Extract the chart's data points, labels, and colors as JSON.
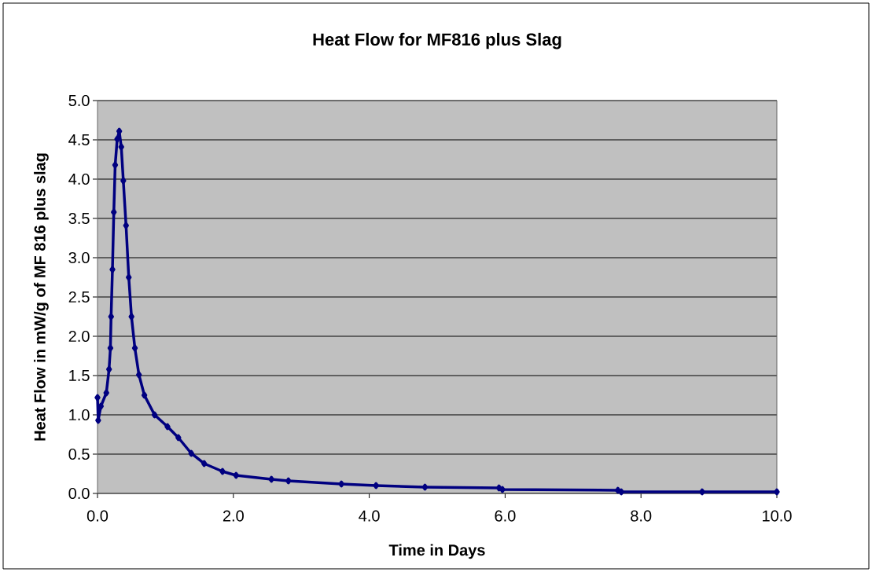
{
  "chart_data": {
    "type": "line",
    "title": "Heat Flow for MF816 plus Slag",
    "xlabel": "Time in Days",
    "ylabel": "Heat Flow in mW/g of MF 816 plus slag",
    "series": [
      {
        "color": "#000080",
        "x": [
          0.0,
          0.01,
          0.05,
          0.13,
          0.17,
          0.19,
          0.2,
          0.22,
          0.24,
          0.26,
          0.29,
          0.32,
          0.35,
          0.38,
          0.42,
          0.46,
          0.5,
          0.55,
          0.61,
          0.69,
          0.84,
          1.03,
          1.19,
          1.38,
          1.57,
          1.84,
          2.04,
          2.56,
          2.81,
          3.59,
          4.1,
          4.82,
          5.91,
          5.96,
          7.66,
          7.71,
          8.9,
          10.0
        ],
        "values": [
          1.22,
          0.93,
          1.11,
          1.28,
          1.58,
          1.85,
          2.25,
          2.85,
          3.58,
          4.18,
          4.51,
          4.61,
          4.41,
          3.98,
          3.41,
          2.75,
          2.25,
          1.85,
          1.51,
          1.25,
          1.0,
          0.85,
          0.71,
          0.51,
          0.38,
          0.28,
          0.23,
          0.18,
          0.16,
          0.12,
          0.1,
          0.08,
          0.07,
          0.05,
          0.04,
          0.02,
          0.02,
          0.02
        ]
      }
    ],
    "xlim": [
      0,
      10
    ],
    "xticks": [
      {
        "value": 0,
        "label": "0.0"
      },
      {
        "value": 2,
        "label": "2.0"
      },
      {
        "value": 4,
        "label": "4.0"
      },
      {
        "value": 6,
        "label": "6.0"
      },
      {
        "value": 8,
        "label": "8.0"
      },
      {
        "value": 10,
        "label": "10.0"
      }
    ],
    "ylim": [
      0,
      5
    ],
    "yticks": [
      {
        "value": 0,
        "label": "0.0"
      },
      {
        "value": 0.5,
        "label": "0.5"
      },
      {
        "value": 1,
        "label": "1.0"
      },
      {
        "value": 1.5,
        "label": "1.5"
      },
      {
        "value": 2,
        "label": "2.0"
      },
      {
        "value": 2.5,
        "label": "2.5"
      },
      {
        "value": 3,
        "label": "3.0"
      },
      {
        "value": 3.5,
        "label": "3.5"
      },
      {
        "value": 4,
        "label": "4.0"
      },
      {
        "value": 4.5,
        "label": "4.5"
      },
      {
        "value": 5,
        "label": "5.0"
      }
    ],
    "grid": "y",
    "marker": "diamond",
    "line_style": "solid"
  }
}
